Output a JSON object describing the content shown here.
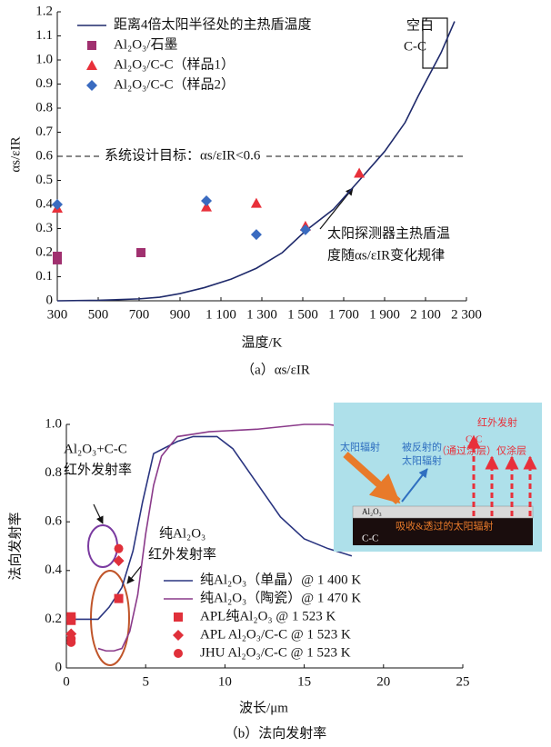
{
  "chart_data": [
    {
      "type": "line",
      "title": "（a）αs/εIR",
      "x_label": "温度/K",
      "y_label": "αs/εIR",
      "xlim": [
        300,
        2300
      ],
      "xticks": [
        300,
        500,
        700,
        900,
        {
          "value": 1100,
          "label": "1 100"
        },
        {
          "value": 1300,
          "label": "1 300"
        },
        {
          "value": 1500,
          "label": "1 500"
        },
        {
          "value": 1700,
          "label": "1 700"
        },
        {
          "value": 1900,
          "label": "1 900"
        },
        {
          "value": 2100,
          "label": "2 100"
        },
        {
          "value": 2300,
          "label": "2 300"
        }
      ],
      "ylim": [
        0,
        1.2
      ],
      "yticks": [
        0,
        0.1,
        0.2,
        0.3,
        0.4,
        0.5,
        0.6,
        0.7,
        0.8,
        0.9,
        {
          "value": 1,
          "label": "1.0"
        },
        1.1,
        1.2
      ],
      "legend": "upper left",
      "target": 0.6,
      "series": [
        {
          "name": "距离4倍太阳半径处的主热盾温度",
          "color": "#1f2a6b",
          "marker": null,
          "x": [
            300,
            500,
            700,
            800,
            900,
            1020,
            1150,
            1273,
            1400,
            1513,
            1650,
            1776,
            1900,
            2000,
            2064,
            2176,
            2242
          ],
          "values": [
            0,
            0.002,
            0.008,
            0.015,
            0.03,
            0.055,
            0.09,
            0.135,
            0.2,
            0.29,
            0.38,
            0.5,
            0.62,
            0.74,
            0.85,
            1.03,
            1.16
          ]
        },
        {
          "name": "Al₂O₃/石墨",
          "color": "#a0306f",
          "marker": "square",
          "x": [
            300,
            300,
            709
          ],
          "values": [
            0.17,
            0.185,
            0.2
          ]
        },
        {
          "name": "Al₂O₃/C-C（样品1）",
          "color": "#e8303a",
          "marker": "triangle",
          "x": [
            300,
            1029,
            1273,
            1513,
            1776
          ],
          "values": [
            0.385,
            0.39,
            0.405,
            0.31,
            0.53
          ]
        },
        {
          "name": "Al₂O₃/C-C（样品2）",
          "color": "#3a6bc0",
          "marker": "diamond",
          "x": [
            300,
            1029,
            1273,
            1513
          ],
          "values": [
            0.4,
            0.415,
            0.275,
            0.295
          ]
        }
      ],
      "annotations": [
        "空白",
        "C-C",
        "系统设计目标：αs/εIR<0.6",
        "太阳探测器主热盾温",
        "度随αs/εIR变化规律"
      ]
    },
    {
      "type": "line",
      "title": "（b）法向发射率",
      "x_label": "波长/μm",
      "y_label": "法向发射率",
      "xlim": [
        0,
        25
      ],
      "xticks": [
        0,
        5,
        10,
        15,
        20,
        25
      ],
      "ylim": [
        0,
        1
      ],
      "yticks": [
        0,
        0.2,
        0.4,
        0.6,
        0.8,
        {
          "value": 1,
          "label": "1.0"
        }
      ],
      "legend": "lower right",
      "series": [
        {
          "name": "纯Al₂O₃（单晶）@ 1 400 K",
          "color": "#2a3580",
          "marker": null,
          "x": [
            0.3,
            2,
            2.7,
            3.5,
            4.2,
            4.8,
            5.5,
            7,
            8,
            9.5,
            10.5,
            12,
            13.5,
            15,
            16.5,
            18
          ],
          "values": [
            0.2,
            0.2,
            0.25,
            0.33,
            0.48,
            0.68,
            0.88,
            0.93,
            0.95,
            0.95,
            0.9,
            0.76,
            0.62,
            0.53,
            0.49,
            0.46
          ]
        },
        {
          "name": "纯Al₂O₃（陶瓷）@ 1 470 K",
          "color": "#8a3a8a",
          "marker": null,
          "x": [
            2,
            2.5,
            3,
            3.5,
            4,
            4.5,
            5,
            5.5,
            6,
            7,
            9,
            12,
            15,
            16.5,
            17.5,
            18
          ],
          "values": [
            0.08,
            0.07,
            0.07,
            0.08,
            0.15,
            0.3,
            0.55,
            0.75,
            0.87,
            0.95,
            0.97,
            0.98,
            1,
            1,
            0.99,
            0.98
          ]
        },
        {
          "name": "APL纯Al₂O₃ @ 1 523 K",
          "color": "#e0303a",
          "marker": "square",
          "x": [
            0.3,
            0.3,
            3.3
          ],
          "values": [
            0.21,
            0.195,
            0.285
          ]
        },
        {
          "name": "APL Al₂O₃/C-C @ 1 523 K",
          "color": "#e0303a",
          "marker": "diamond",
          "x": [
            0.3,
            3.3
          ],
          "values": [
            0.14,
            0.44
          ]
        },
        {
          "name": "JHU Al₂O₃/C-C @ 1 523 K",
          "color": "#e0303a",
          "marker": "circle",
          "x": [
            0.3,
            0.3,
            3.3
          ],
          "values": [
            0.12,
            0.105,
            0.49
          ]
        }
      ],
      "annotations": [
        "Al₂O₃+C-C",
        "红外发射率",
        "纯Al₂O₃",
        "红外发射率"
      ],
      "inset": [
        "红外发射",
        "C-C",
        "（通过涂层）仅涂层",
        "太阳辐射",
        "被反射的",
        "太阳辐射",
        "Al₂O₃",
        "吸收&透过的太阳辐射",
        "C-C"
      ]
    }
  ]
}
